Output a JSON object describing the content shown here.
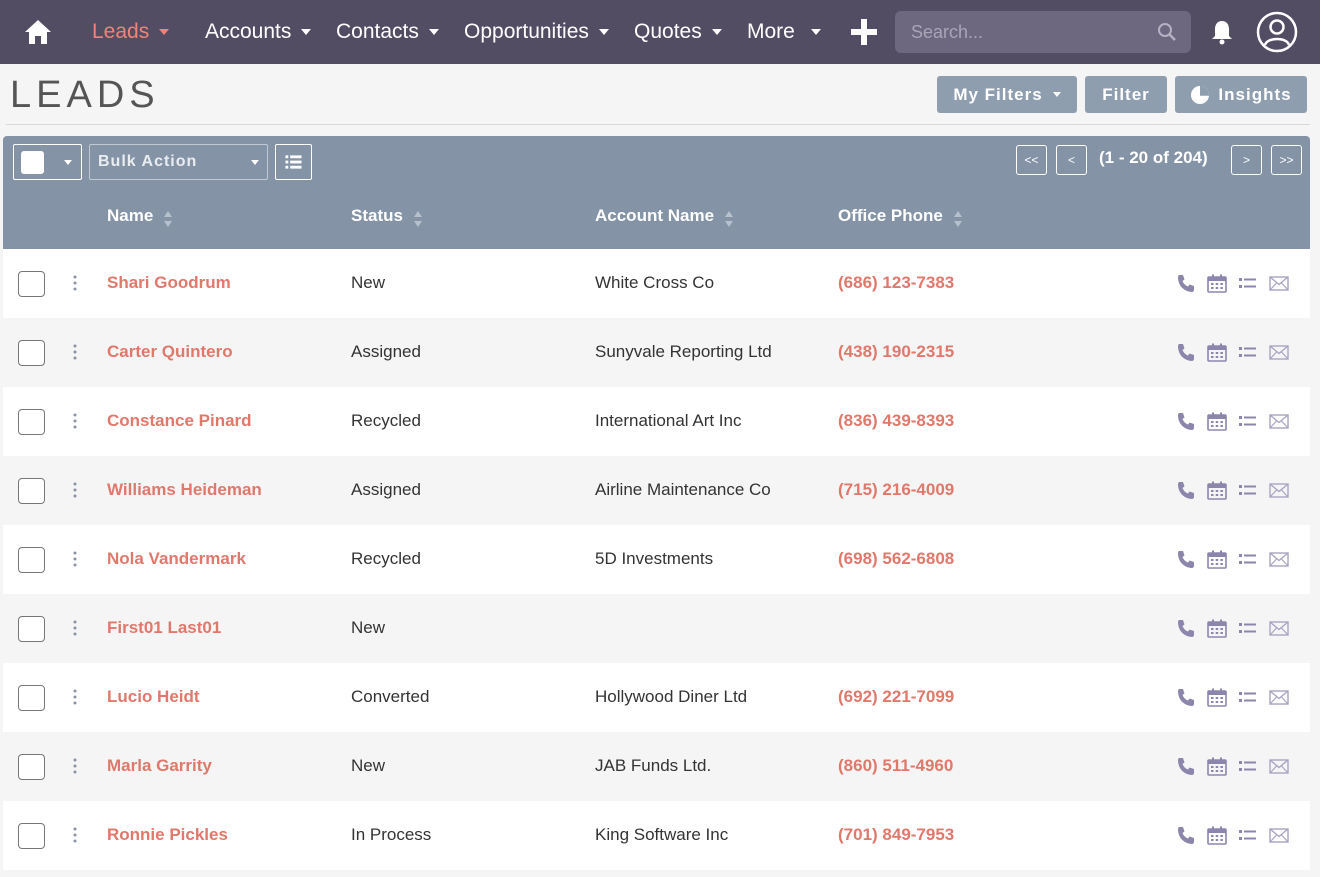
{
  "nav": {
    "items": [
      {
        "label": "Leads",
        "active": true
      },
      {
        "label": "Accounts",
        "active": false
      },
      {
        "label": "Contacts",
        "active": false
      },
      {
        "label": "Opportunities",
        "active": false
      },
      {
        "label": "Quotes",
        "active": false
      },
      {
        "label": "More",
        "active": false
      }
    ],
    "search_placeholder": "Search...",
    "icons": [
      "home-icon",
      "plus-icon",
      "search-icon",
      "bell-icon",
      "user-avatar-icon"
    ]
  },
  "page": {
    "title": "LEADS",
    "buttons": {
      "my_filters": "My Filters",
      "filter": "Filter",
      "insights": "Insights"
    }
  },
  "toolbar": {
    "bulk_action": "Bulk Action",
    "pagination": {
      "first": "<<",
      "prev": "<",
      "range": "(1 - 20 of 204)",
      "next": ">",
      "last": ">>"
    }
  },
  "table": {
    "columns": [
      "Name",
      "Status",
      "Account Name",
      "Office Phone"
    ],
    "rows": [
      {
        "name": "Shari Goodrum",
        "status": "New",
        "account": "White Cross Co",
        "phone": "(686) 123-7383"
      },
      {
        "name": "Carter Quintero",
        "status": "Assigned",
        "account": "Sunyvale Reporting Ltd",
        "phone": "(438) 190-2315"
      },
      {
        "name": "Constance Pinard",
        "status": "Recycled",
        "account": "International Art Inc",
        "phone": "(836) 439-8393"
      },
      {
        "name": "Williams Heideman",
        "status": "Assigned",
        "account": "Airline Maintenance Co",
        "phone": "(715) 216-4009"
      },
      {
        "name": "Nola Vandermark",
        "status": "Recycled",
        "account": "5D Investments",
        "phone": "(698) 562-6808"
      },
      {
        "name": "First01 Last01",
        "status": "New",
        "account": "",
        "phone": ""
      },
      {
        "name": "Lucio Heidt",
        "status": "Converted",
        "account": "Hollywood Diner Ltd",
        "phone": "(692) 221-7099"
      },
      {
        "name": "Marla Garrity",
        "status": "New",
        "account": "JAB Funds Ltd.",
        "phone": "(860) 511-4960"
      },
      {
        "name": "Ronnie Pickles",
        "status": "In Process",
        "account": "King Software Inc",
        "phone": "(701) 849-7953"
      }
    ],
    "row_actions": [
      "phone-icon",
      "calendar-icon",
      "task-list-icon",
      "email-icon"
    ]
  },
  "colors": {
    "nav_bg": "#534d64",
    "accent": "#e0786c",
    "toolbar_bg": "#8494a6",
    "button_bg": "#8f9eaf",
    "action_icon": "#8c86ad"
  }
}
